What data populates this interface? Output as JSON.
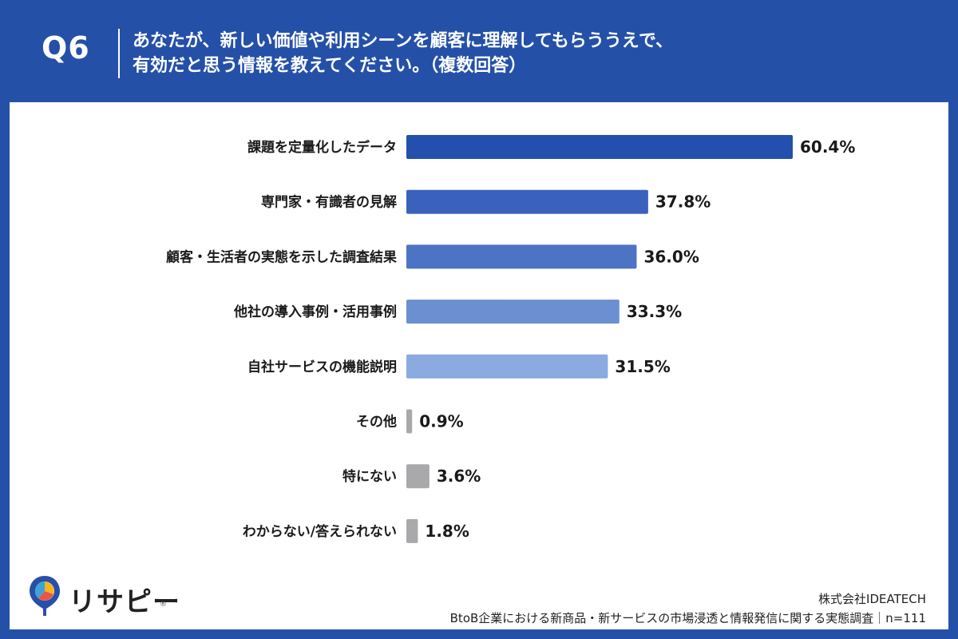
{
  "header": {
    "question_number": "Q6",
    "question_line1": "あなたが、新しい価値や利用シーンを顧客に理解してもらううえで、",
    "question_line2": "有効だと思う情報を教えてください。（複数回答）"
  },
  "chart_data": {
    "type": "bar",
    "orientation": "horizontal",
    "categories": [
      "課題を定量化したデータ",
      "専門家・有識者の見解",
      "顧客・生活者の実態を示した調査結果",
      "他社の導入事例・活用事例",
      "自社サービスの機能説明",
      "その他",
      "特にない",
      "わからない/答えられない"
    ],
    "values": [
      60.4,
      37.8,
      36.0,
      33.3,
      31.5,
      0.9,
      3.6,
      1.8
    ],
    "value_labels": [
      "60.4%",
      "37.8%",
      "36.0%",
      "33.3%",
      "31.5%",
      "0.9%",
      "3.6%",
      "1.8%"
    ],
    "bar_colors": [
      "#2350ad",
      "#3a62bd",
      "#4d73c4",
      "#6c8fd2",
      "#8aaae0",
      "#a9a9ac",
      "#a9a9ac",
      "#a9a9ac"
    ],
    "xlim": [
      0,
      60.4
    ],
    "grid": false,
    "legend": "none"
  },
  "logo": {
    "name": "リサピー",
    "registered": "®"
  },
  "footer": {
    "company": "株式会社IDEATECH",
    "survey": "BtoB企業における新商品・新サービスの市場浸透と情報発信に関する実態調査｜n=111"
  },
  "colors": {
    "background": "#2450a8",
    "panel": "#ffffff"
  }
}
